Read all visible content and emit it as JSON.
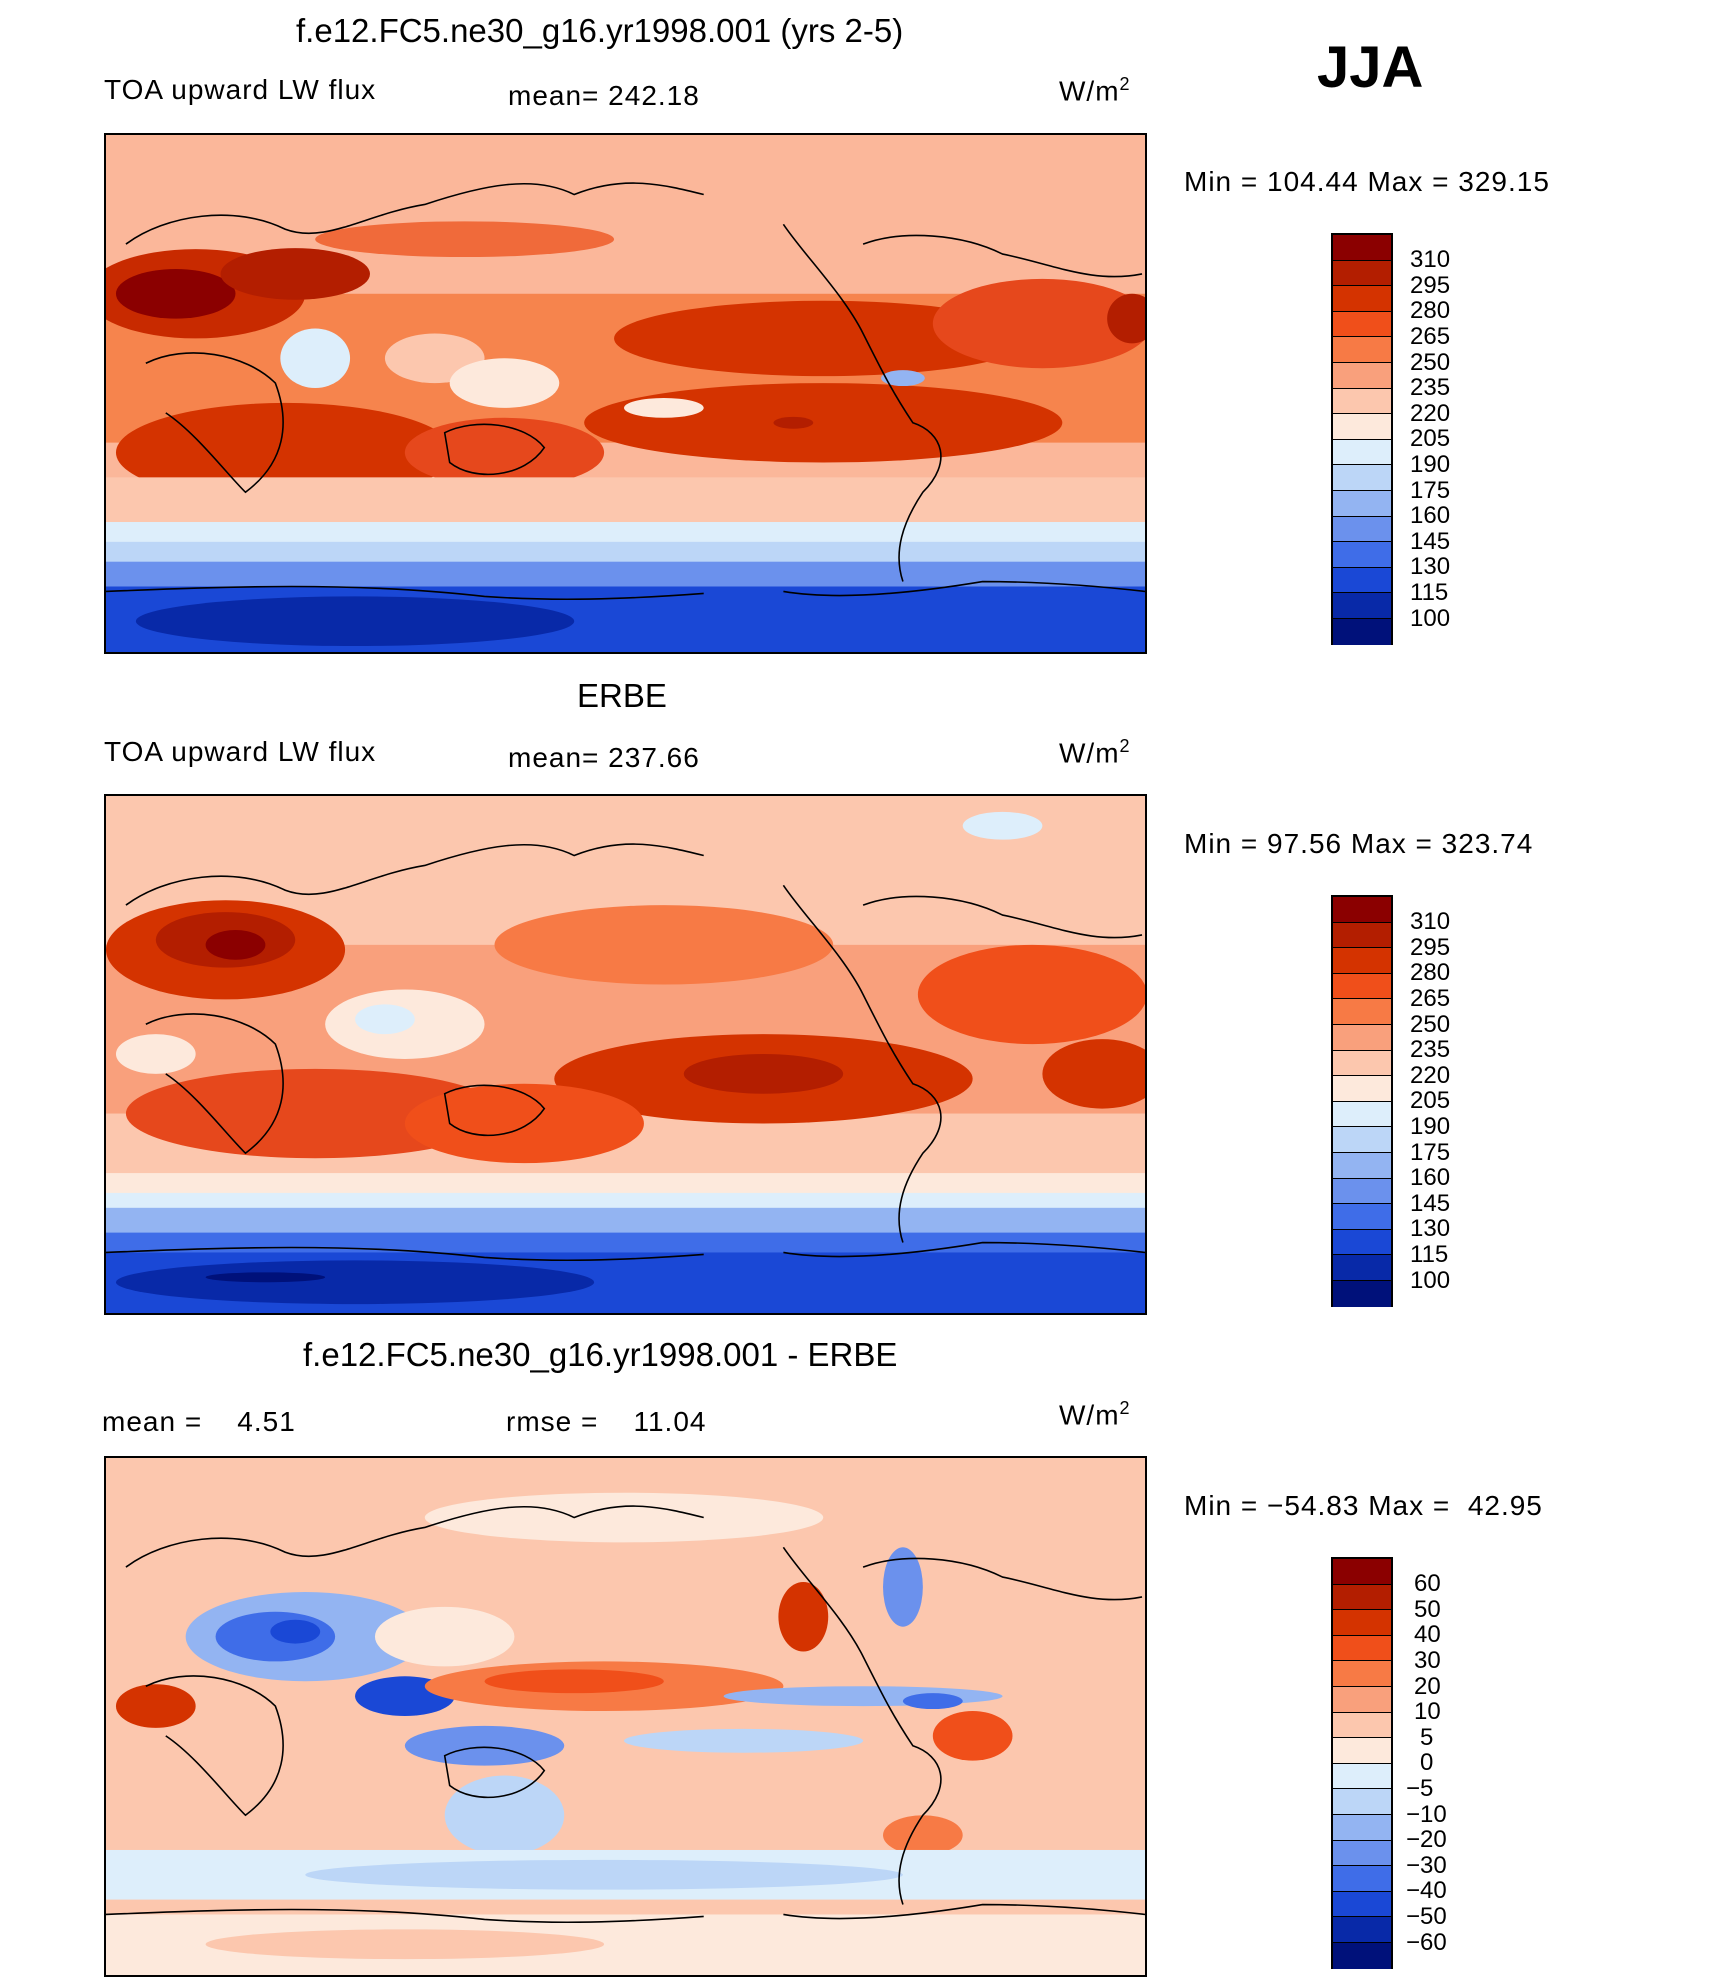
{
  "season": "JJA",
  "panels": [
    {
      "id": "model",
      "title": "f.e12.FC5.ne30_g16.yr1998.001 (yrs 2-5)",
      "left_label": "TOA upward LW flux",
      "center_label": "mean= 242.18",
      "units_prefix": "W/m",
      "units_sup": "2",
      "minmax": "Min = 104.44 Max = 329.15",
      "levels": [
        "310",
        "295",
        "280",
        "265",
        "250",
        "235",
        "220",
        "205",
        "190",
        "175",
        "160",
        "145",
        "130",
        "115",
        "100"
      ]
    },
    {
      "id": "obs",
      "title": "ERBE",
      "left_label": "TOA upward LW flux",
      "center_label": "mean= 237.66",
      "units_prefix": "W/m",
      "units_sup": "2",
      "minmax": "Min =  97.56 Max = 323.74",
      "levels": [
        "310",
        "295",
        "280",
        "265",
        "250",
        "235",
        "220",
        "205",
        "190",
        "175",
        "160",
        "145",
        "130",
        "115",
        "100"
      ]
    },
    {
      "id": "diff",
      "title": "f.e12.FC5.ne30_g16.yr1998.001 - ERBE",
      "left_label": "mean =    4.51",
      "center_label": "rmse =    11.04",
      "units_prefix": "W/m",
      "units_sup": "2",
      "minmax": "Min = −54.83 Max =  42.95",
      "levels": [
        "60",
        "50",
        "40",
        "30",
        "20",
        "10",
        "5",
        "0",
        "−5",
        "−10",
        "−20",
        "−30",
        "−40",
        "−50",
        "−60"
      ]
    }
  ],
  "colors": {
    "seq": [
      "#8b0000",
      "#b31e00",
      "#d43300",
      "#f04f1a",
      "#f77a45",
      "#f9a07c",
      "#fcc7ae",
      "#fde9dc",
      "#ddeefb",
      "#bcd6f7",
      "#93b4f2",
      "#6b91ed",
      "#3f6de8",
      "#1a48d6",
      "#0829a8",
      "#00117a"
    ]
  }
}
